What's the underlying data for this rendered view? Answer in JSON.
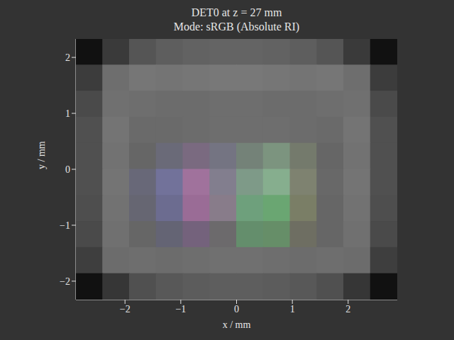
{
  "chart_data": {
    "type": "image",
    "title": "DET0 at z = 27 mm",
    "subtitle": "Mode: sRGB (Absolute RI)",
    "x_label": "x / mm",
    "y_label": "y / mm",
    "x": [
      -2.64,
      -2.16,
      -1.68,
      -1.2,
      -0.72,
      -0.24,
      0.24,
      0.72,
      1.2,
      1.68,
      2.16,
      2.64
    ],
    "y": [
      2.097,
      1.631,
      1.165,
      0.699,
      0.233,
      -0.233,
      -0.699,
      -1.165,
      -1.631,
      -2.097
    ],
    "colors": [
      [
        "#111111",
        "#3a3a3a",
        "#555555",
        "#5e5e5e",
        "#626262",
        "#646464",
        "#646464",
        "#626262",
        "#5e5e5e",
        "#555555",
        "#3a3a3a",
        "#111111"
      ],
      [
        "#3c3c3c",
        "#6e6e6e",
        "#767676",
        "#747474",
        "#767676",
        "#787878",
        "#787878",
        "#767676",
        "#747474",
        "#767676",
        "#6e6e6e",
        "#3c3c3c"
      ],
      [
        "#4a4a4a",
        "#707070",
        "#6e6e6e",
        "#6c6c6c",
        "#6c6c6c",
        "#6e6e6e",
        "#6e6e6e",
        "#6c6c6c",
        "#6c6c6c",
        "#6e6e6e",
        "#707070",
        "#4a4a4a"
      ],
      [
        "#505050",
        "#747474",
        "#6a6a6a",
        "#6a6a6a",
        "#6c6c6c",
        "#6e6e6e",
        "#6e6e6e",
        "#6e6e6e",
        "#6c6c6c",
        "#6a6a6a",
        "#747474",
        "#505050"
      ],
      [
        "#505050",
        "#727272",
        "#666666",
        "#6a6a78",
        "#7a6a80",
        "#747482",
        "#748278",
        "#7c947f",
        "#747a6c",
        "#666666",
        "#727272",
        "#505050"
      ],
      [
        "#505050",
        "#747474",
        "#686878",
        "#72729a",
        "#a0729c",
        "#827e8e",
        "#7e9a88",
        "#86ae8e",
        "#7e8270",
        "#686868",
        "#747474",
        "#505050"
      ],
      [
        "#4e4e4e",
        "#727272",
        "#666672",
        "#6c6c90",
        "#9a6c96",
        "#887c8a",
        "#6ea07c",
        "#6aa672",
        "#7a7e66",
        "#666666",
        "#727272",
        "#4e4e4e"
      ],
      [
        "#4a4a4a",
        "#707070",
        "#666666",
        "#646474",
        "#74627c",
        "#6c6a6c",
        "#648e6c",
        "#668e68",
        "#6e6e62",
        "#666666",
        "#707070",
        "#4a4a4a"
      ],
      [
        "#3e3e3e",
        "#6c6c6c",
        "#6e6e6e",
        "#6c6c6c",
        "#6e6e6e",
        "#707070",
        "#707070",
        "#6e6e6e",
        "#6c6c6c",
        "#6e6e6e",
        "#6c6c6c",
        "#3e3e3e"
      ],
      [
        "#111111",
        "#363636",
        "#505050",
        "#585858",
        "#5c5c5c",
        "#5e5e5e",
        "#5e5e5e",
        "#5c5c5c",
        "#585858",
        "#505050",
        "#363636",
        "#111111"
      ]
    ],
    "xlim": [
      -2.88,
      2.88
    ],
    "ylim": [
      -2.33,
      2.33
    ],
    "xticks": [
      {
        "value": -2,
        "label": "−2"
      },
      {
        "value": -1,
        "label": "−1"
      },
      0,
      1,
      2
    ],
    "yticks": [
      {
        "value": -2,
        "label": "−2"
      },
      {
        "value": -1,
        "label": "−1"
      },
      0,
      1,
      2
    ]
  }
}
